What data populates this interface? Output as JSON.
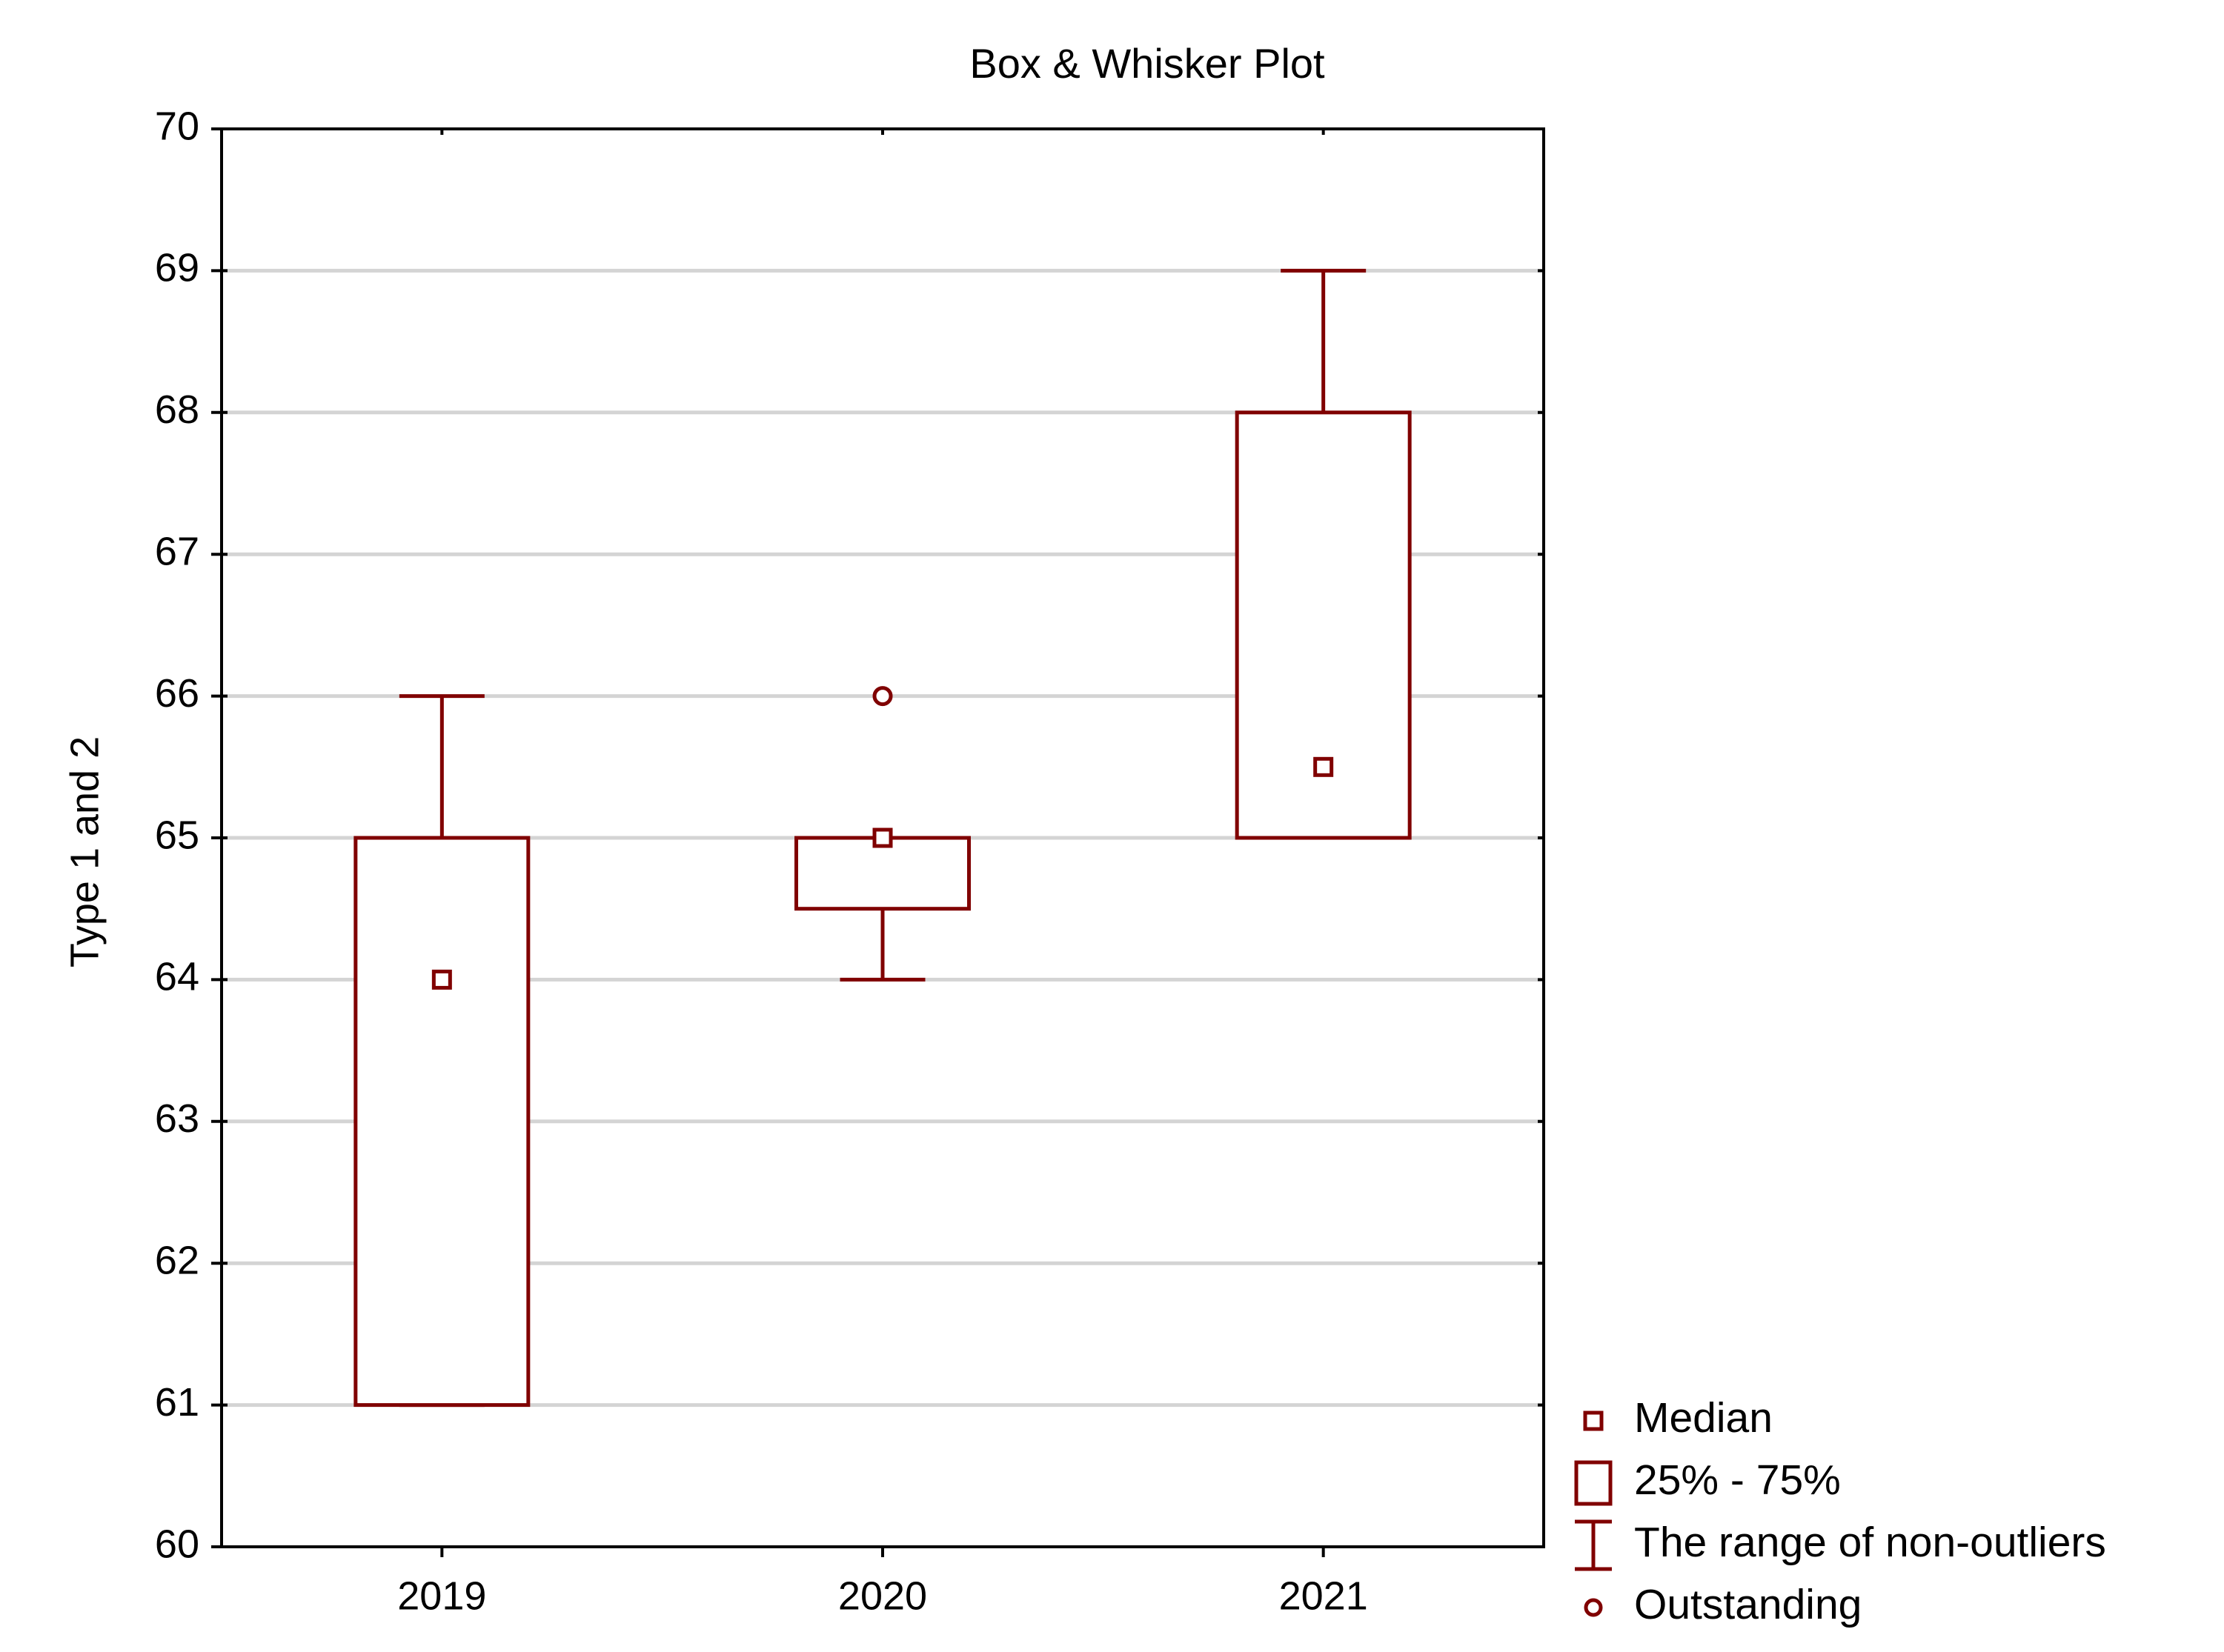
{
  "chart_data": {
    "type": "box",
    "title": "Box & Whisker Plot",
    "y_label": "Type 1 and 2",
    "categories": [
      "2019",
      "2020",
      "2021"
    ],
    "color": "#800000",
    "stats": {
      "min": [
        61,
        64,
        65
      ],
      "q1": [
        61,
        64.5,
        65
      ],
      "median": [
        64,
        65,
        65.5
      ],
      "q3": [
        65,
        65,
        68
      ],
      "max": [
        66,
        65,
        69
      ]
    },
    "outliers": [
      [],
      [
        66
      ],
      []
    ],
    "ylim": [
      60,
      70
    ],
    "yticks": [
      60,
      61,
      62,
      63,
      64,
      65,
      66,
      67,
      68,
      69,
      70
    ],
    "grid": true,
    "legend": {
      "position": "bottom-right",
      "items": [
        "Median",
        "25% - 75%",
        "The range of non-outliers",
        "Outstanding"
      ]
    }
  }
}
